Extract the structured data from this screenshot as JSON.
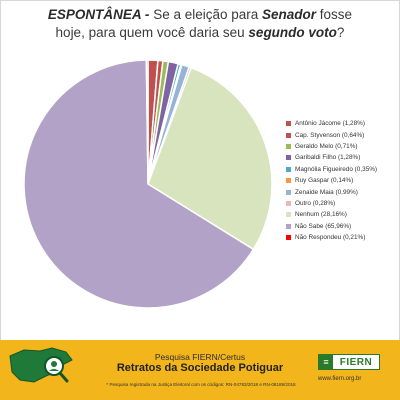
{
  "title": {
    "part1_bold_italic": "ESPONTÂNEA -",
    "part2": " Se a eleição para ",
    "part3_bold_italic": "Senador",
    "part4": " fosse",
    "part5": "hoje, para quem você daria seu ",
    "part6_bold_italic": "segundo voto",
    "part7": "?"
  },
  "chart_data": {
    "type": "pie",
    "title": "ESPONTÂNEA - Se a eleição para Senador fosse hoje, para quem você daria seu segundo voto?",
    "legend_position": "right",
    "slices": [
      {
        "label": "Antônio Jácome (1,28%)",
        "value": 1.28,
        "color": "#c0504d"
      },
      {
        "label": "Cap. Styvenson (0,64%)",
        "value": 0.64,
        "color": "#c0504d"
      },
      {
        "label": "Geraldo Melo (0,71%)",
        "value": 0.71,
        "color": "#9bbb59"
      },
      {
        "label": "Garibaldi Filho (1,28%)",
        "value": 1.28,
        "color": "#8064a2"
      },
      {
        "label": "Magnólia Figueiredo (0,35%)",
        "value": 0.35,
        "color": "#4bacc6"
      },
      {
        "label": "Ruy Gaspar (0,14%)",
        "value": 0.14,
        "color": "#f79646"
      },
      {
        "label": "Zenaide Maia (0,99%)",
        "value": 0.99,
        "color": "#95b3d7"
      },
      {
        "label": "Outro (0,28%)",
        "value": 0.28,
        "color": "#e6b9b8"
      },
      {
        "label": "Nenhum (28,16%)",
        "value": 28.16,
        "color": "#d7e4bd"
      },
      {
        "label": "Não Sabe (65,96%)",
        "value": 65.96,
        "color": "#b3a2c7"
      },
      {
        "label": "Não Respondeu (0,21%)",
        "value": 0.21,
        "color": "#ff0000"
      }
    ]
  },
  "footer": {
    "line1": "Pesquisa FIERN/Certus",
    "line2": "Retratos da Sociedade Potiguar",
    "note": "* Pesquisa registrada na Justiça Eleitoral com os códigos: RN-04783/2018 e RN-08189/2018",
    "logo": "FIERN",
    "site": "www.fiern.org.br"
  },
  "colors": {
    "footer_bg": "#f2b51b",
    "brand_green": "#2a7a2a"
  }
}
